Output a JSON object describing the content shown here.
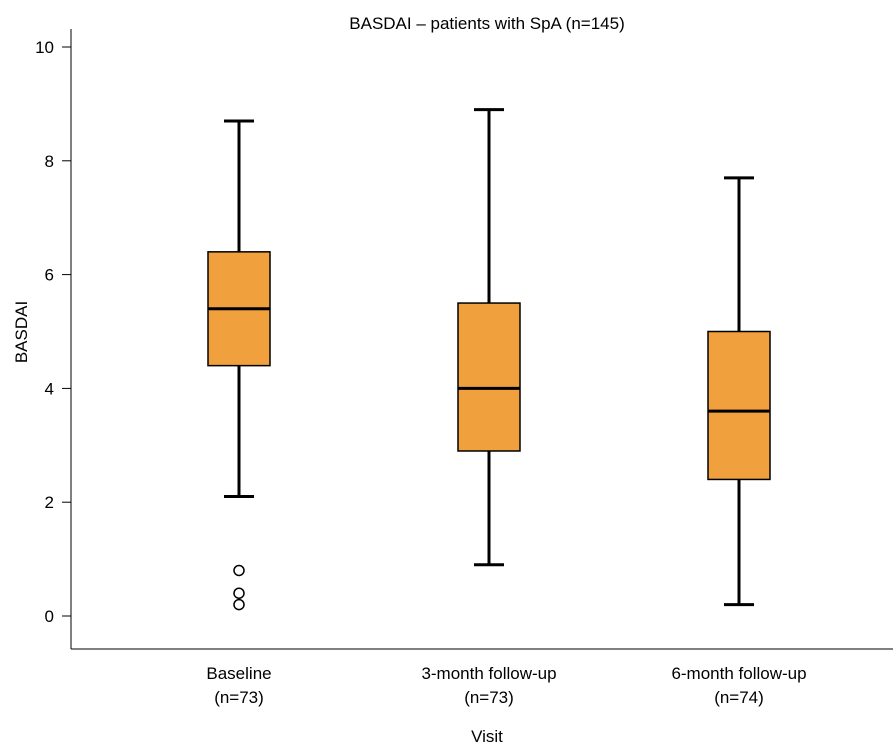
{
  "chart_data": {
    "type": "box",
    "title": "BASDAI – patients with SpA (n=145)",
    "xlabel": "Visit",
    "ylabel": "BASDAI",
    "ylim": [
      0,
      10
    ],
    "yticks": [
      0,
      2,
      4,
      6,
      8,
      10
    ],
    "box_color": "#f0a03c",
    "categories": [
      {
        "name": "Baseline",
        "n": "(n=73)",
        "whisker_low": 2.1,
        "q1": 4.4,
        "median": 5.4,
        "q3": 6.4,
        "whisker_high": 8.7,
        "outliers": [
          0.8,
          0.4,
          0.2
        ]
      },
      {
        "name": "3-month follow-up",
        "n": "(n=73)",
        "whisker_low": 0.9,
        "q1": 2.9,
        "median": 4.0,
        "q3": 5.5,
        "whisker_high": 8.9,
        "outliers": []
      },
      {
        "name": "6-month follow-up",
        "n": "(n=74)",
        "whisker_low": 0.2,
        "q1": 2.4,
        "median": 3.6,
        "q3": 5.0,
        "whisker_high": 7.7,
        "outliers": []
      }
    ]
  }
}
